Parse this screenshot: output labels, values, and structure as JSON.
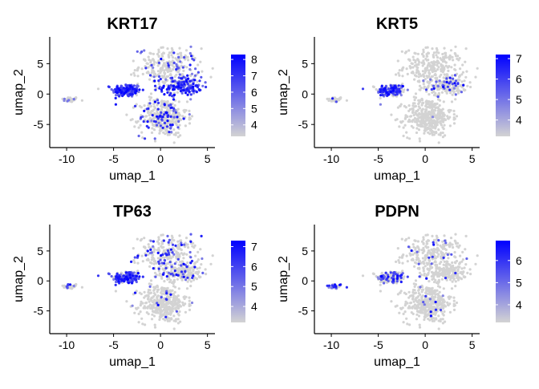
{
  "chart_data": [
    {
      "type": "scatter",
      "title": "KRT17",
      "xlabel": "umap_1",
      "ylabel": "umap_2",
      "xlim": [
        -11.8,
        5.8
      ],
      "ylim": [
        -8.8,
        9.4
      ],
      "xticks": [
        -10,
        -5,
        0,
        5
      ],
      "yticks": [
        -5,
        0,
        5
      ],
      "colorbar": {
        "ticks": [
          4,
          5,
          6,
          7,
          8
        ],
        "range": [
          3.3,
          8.3
        ],
        "low_color": "#d3d3d3",
        "high_color": "#0000ff"
      },
      "expression_profile": {
        "island": 0.15,
        "left": 0.95,
        "right": 0.85,
        "top": 0.15,
        "bottom": 0.2,
        "density": 0.45
      }
    },
    {
      "type": "scatter",
      "title": "KRT5",
      "xlabel": "umap_1",
      "ylabel": "umap_2",
      "xlim": [
        -11.8,
        5.8
      ],
      "ylim": [
        -8.8,
        9.4
      ],
      "xticks": [
        -10,
        -5,
        0,
        5
      ],
      "yticks": [
        -5,
        0,
        5
      ],
      "colorbar": {
        "ticks": [
          4,
          5,
          6,
          7
        ],
        "range": [
          3.2,
          7.2
        ],
        "low_color": "#d3d3d3",
        "high_color": "#0000ff"
      },
      "expression_profile": {
        "island": 0.1,
        "left": 0.95,
        "right": 0.35,
        "top": 0.0,
        "bottom": 0.01,
        "density": 0.3
      }
    },
    {
      "type": "scatter",
      "title": "TP63",
      "xlabel": "umap_1",
      "ylabel": "umap_2",
      "xlim": [
        -11.8,
        5.8
      ],
      "ylim": [
        -8.8,
        9.4
      ],
      "xticks": [
        -10,
        -5,
        0,
        5
      ],
      "yticks": [
        -5,
        0,
        5
      ],
      "colorbar": {
        "ticks": [
          4,
          5,
          6,
          7
        ],
        "range": [
          3.2,
          7.3
        ],
        "low_color": "#d3d3d3",
        "high_color": "#0000ff"
      },
      "expression_profile": {
        "island": 0.3,
        "left": 0.95,
        "right": 0.2,
        "top": 0.3,
        "bottom": 0.08,
        "density": 0.35
      }
    },
    {
      "type": "scatter",
      "title": "PDPN",
      "xlabel": "umap_1",
      "ylabel": "umap_2",
      "xlim": [
        -11.8,
        5.8
      ],
      "ylim": [
        -8.8,
        9.4
      ],
      "xticks": [
        -10,
        -5,
        0,
        5
      ],
      "yticks": [
        -5,
        0,
        5
      ],
      "colorbar": {
        "ticks": [
          4,
          5,
          6
        ],
        "range": [
          3.2,
          6.9
        ],
        "low_color": "#d3d3d3",
        "high_color": "#0000ff"
      },
      "expression_profile": {
        "island": 0.95,
        "left": 0.5,
        "right": 0.05,
        "top": 0.12,
        "bottom": 0.05,
        "density": 0.25
      }
    }
  ]
}
